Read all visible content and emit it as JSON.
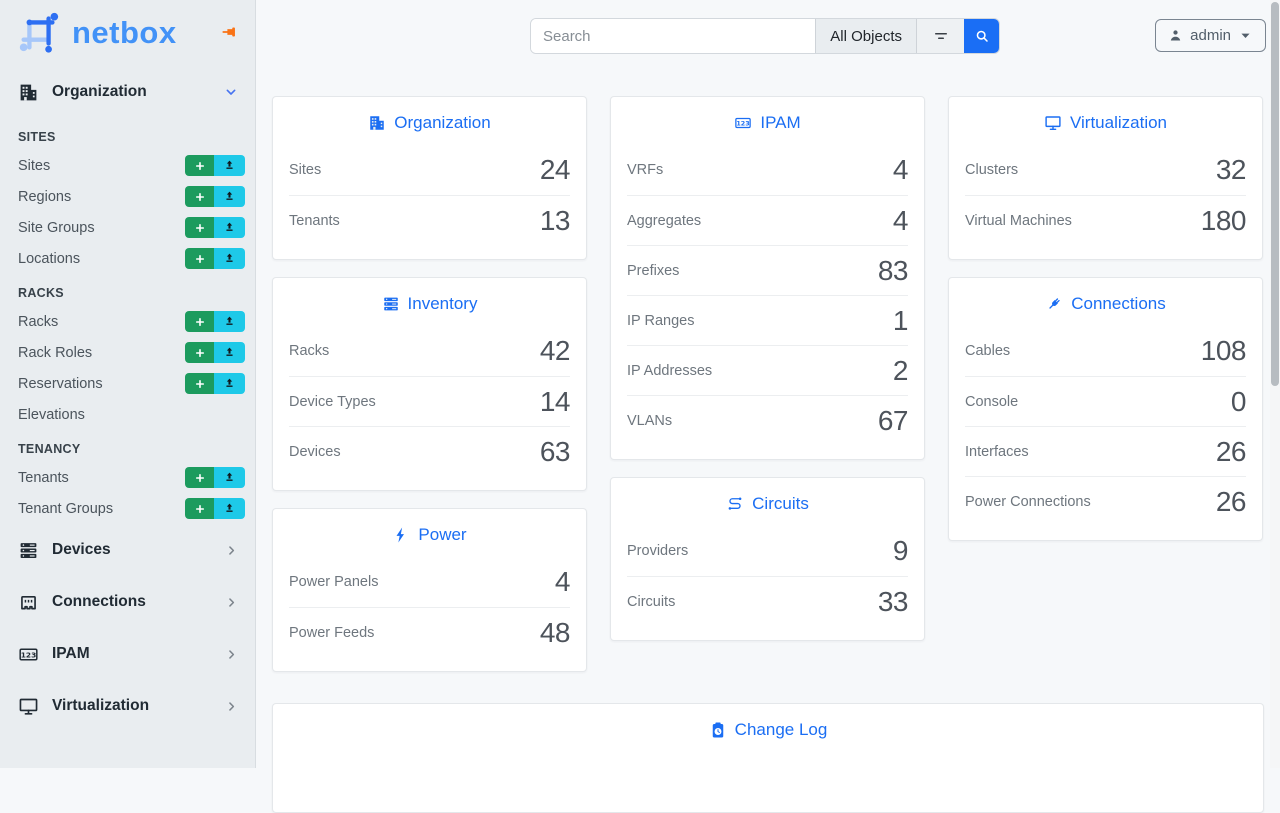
{
  "brand": {
    "name": "netbox",
    "logo_icon": "netbox-logo",
    "pin_icon": "pin-icon"
  },
  "colors": {
    "accent_blue": "#1b6ef3",
    "brand_blue": "#4292f7",
    "add_green": "#1c9b5e",
    "import_cyan": "#1ec9e8",
    "pin_orange": "#f97316",
    "sidebar_bg": "#e9edf0",
    "content_bg": "#f6f8fa"
  },
  "topbar": {
    "search_placeholder": "Search",
    "scope_button": "All Objects",
    "filter_icon": "filter-icon",
    "search_icon": "search-icon",
    "user_menu": {
      "label": "admin",
      "icon": "person-icon",
      "caret_icon": "caret-down-icon"
    }
  },
  "sidebar": {
    "sections": [
      {
        "label": "Organization",
        "icon": "building-icon",
        "state": "expanded",
        "groups": [
          {
            "heading": "SITES",
            "items": [
              {
                "label": "Sites",
                "actions": [
                  "add",
                  "import"
                ]
              },
              {
                "label": "Regions",
                "actions": [
                  "add",
                  "import"
                ]
              },
              {
                "label": "Site Groups",
                "actions": [
                  "add",
                  "import"
                ]
              },
              {
                "label": "Locations",
                "actions": [
                  "add",
                  "import"
                ]
              }
            ]
          },
          {
            "heading": "RACKS",
            "items": [
              {
                "label": "Racks",
                "actions": [
                  "add",
                  "import"
                ]
              },
              {
                "label": "Rack Roles",
                "actions": [
                  "add",
                  "import"
                ]
              },
              {
                "label": "Reservations",
                "actions": [
                  "add",
                  "import"
                ]
              },
              {
                "label": "Elevations",
                "actions": []
              }
            ]
          },
          {
            "heading": "TENANCY",
            "items": [
              {
                "label": "Tenants",
                "actions": [
                  "add",
                  "import"
                ]
              },
              {
                "label": "Tenant Groups",
                "actions": [
                  "add",
                  "import"
                ]
              }
            ]
          }
        ]
      },
      {
        "label": "Devices",
        "icon": "server-stack-icon",
        "state": "collapsed"
      },
      {
        "label": "Connections",
        "icon": "ethernet-icon",
        "state": "collapsed"
      },
      {
        "label": "IPAM",
        "icon": "counter-icon",
        "state": "collapsed"
      },
      {
        "label": "Virtualization",
        "icon": "monitor-icon",
        "state": "collapsed"
      }
    ]
  },
  "dashboard": {
    "columns": [
      [
        {
          "title": "Organization",
          "icon": "building-icon",
          "rows": [
            {
              "label": "Sites",
              "value": "24"
            },
            {
              "label": "Tenants",
              "value": "13"
            }
          ]
        },
        {
          "title": "Inventory",
          "icon": "server-stack-icon",
          "rows": [
            {
              "label": "Racks",
              "value": "42"
            },
            {
              "label": "Device Types",
              "value": "14"
            },
            {
              "label": "Devices",
              "value": "63"
            }
          ]
        },
        {
          "title": "Power",
          "icon": "bolt-icon",
          "rows": [
            {
              "label": "Power Panels",
              "value": "4"
            },
            {
              "label": "Power Feeds",
              "value": "48"
            }
          ]
        }
      ],
      [
        {
          "title": "IPAM",
          "icon": "counter-icon",
          "rows": [
            {
              "label": "VRFs",
              "value": "4"
            },
            {
              "label": "Aggregates",
              "value": "4"
            },
            {
              "label": "Prefixes",
              "value": "83"
            },
            {
              "label": "IP Ranges",
              "value": "1"
            },
            {
              "label": "IP Addresses",
              "value": "2"
            },
            {
              "label": "VLANs",
              "value": "67"
            }
          ]
        },
        {
          "title": "Circuits",
          "icon": "circuit-icon",
          "rows": [
            {
              "label": "Providers",
              "value": "9"
            },
            {
              "label": "Circuits",
              "value": "33"
            }
          ]
        }
      ],
      [
        {
          "title": "Virtualization",
          "icon": "monitor-icon",
          "rows": [
            {
              "label": "Clusters",
              "value": "32"
            },
            {
              "label": "Virtual Machines",
              "value": "180"
            }
          ]
        },
        {
          "title": "Connections",
          "icon": "plug-icon",
          "rows": [
            {
              "label": "Cables",
              "value": "108"
            },
            {
              "label": "Console",
              "value": "0"
            },
            {
              "label": "Interfaces",
              "value": "26"
            },
            {
              "label": "Power Connections",
              "value": "26"
            }
          ]
        }
      ]
    ],
    "changelog": {
      "title": "Change Log",
      "icon": "clipboard-clock-icon"
    }
  }
}
